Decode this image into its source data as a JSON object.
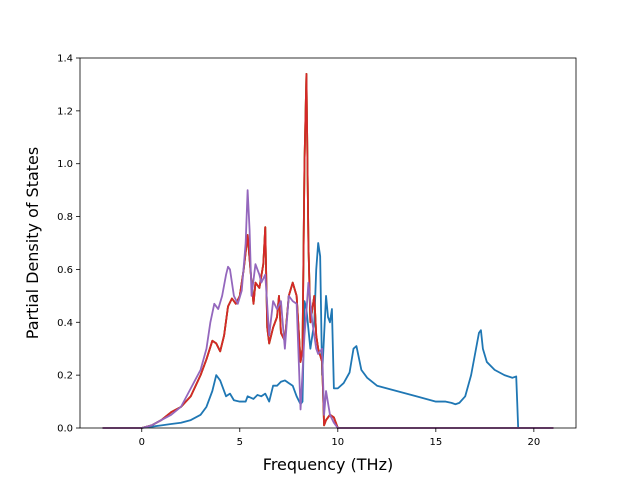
{
  "chart_data": {
    "type": "line",
    "title": "",
    "xlabel": "Frequency (THz)",
    "ylabel": "Partial Density of States",
    "xlim": [
      -3.15,
      22.15
    ],
    "ylim": [
      0,
      1.4
    ],
    "xticks": [
      0,
      5,
      10,
      15,
      20
    ],
    "yticks": [
      0.0,
      0.2,
      0.4,
      0.6,
      0.8,
      1.0,
      1.2,
      1.4
    ],
    "xtick_labels": [
      "0",
      "5",
      "10",
      "15",
      "20"
    ],
    "ytick_labels": [
      "0.0",
      "0.2",
      "0.4",
      "0.6",
      "0.8",
      "1.0",
      "1.2",
      "1.4"
    ],
    "grid": false,
    "legend": "none",
    "series": [
      {
        "color": "#1f77b4",
        "x": [
          -2.0,
          0.0,
          0.5,
          1.0,
          1.5,
          2.0,
          2.5,
          3.0,
          3.3,
          3.6,
          3.8,
          4.0,
          4.3,
          4.5,
          4.7,
          5.0,
          5.3,
          5.4,
          5.7,
          5.9,
          6.1,
          6.3,
          6.5,
          6.7,
          6.9,
          7.1,
          7.3,
          7.5,
          7.7,
          7.9,
          8.1,
          8.2,
          8.3,
          8.4,
          8.6,
          8.8,
          8.9,
          9.0,
          9.1,
          9.2,
          9.4,
          9.5,
          9.6,
          9.7,
          9.8,
          10.0,
          10.3,
          10.6,
          10.8,
          10.95,
          11.2,
          11.5,
          12.0,
          13.0,
          14.0,
          15.0,
          15.5,
          15.8,
          16.0,
          16.2,
          16.5,
          16.8,
          17.0,
          17.2,
          17.3,
          17.4,
          17.6,
          18.0,
          18.5,
          18.9,
          19.1,
          19.15,
          19.2,
          21.0
        ],
        "y": [
          0.0,
          0.0,
          0.005,
          0.01,
          0.015,
          0.02,
          0.03,
          0.05,
          0.08,
          0.14,
          0.2,
          0.18,
          0.12,
          0.13,
          0.105,
          0.1,
          0.1,
          0.12,
          0.11,
          0.125,
          0.12,
          0.13,
          0.1,
          0.16,
          0.16,
          0.175,
          0.18,
          0.17,
          0.16,
          0.12,
          0.09,
          0.1,
          0.48,
          0.45,
          0.3,
          0.4,
          0.6,
          0.7,
          0.65,
          0.2,
          0.5,
          0.42,
          0.4,
          0.45,
          0.15,
          0.15,
          0.17,
          0.21,
          0.3,
          0.31,
          0.22,
          0.19,
          0.16,
          0.14,
          0.12,
          0.1,
          0.1,
          0.095,
          0.09,
          0.095,
          0.12,
          0.2,
          0.28,
          0.36,
          0.37,
          0.3,
          0.25,
          0.22,
          0.2,
          0.19,
          0.195,
          0.1,
          0.0,
          0.0
        ]
      },
      {
        "color": "#ff7f0e",
        "x": [
          -2.0,
          0.0,
          0.5,
          1.0,
          1.5,
          2.0,
          2.5,
          3.0,
          3.3,
          3.6,
          3.8,
          4.0,
          4.2,
          4.4,
          4.6,
          4.8,
          5.0,
          5.2,
          5.4,
          5.6,
          5.7,
          5.8,
          6.0,
          6.2,
          6.3,
          6.4,
          6.5,
          6.7,
          6.9,
          7.0,
          7.1,
          7.3,
          7.5,
          7.7,
          7.9,
          8.1,
          8.2,
          8.3,
          8.4,
          8.5,
          8.6,
          8.8,
          8.9,
          9.0,
          9.2,
          9.3,
          9.4,
          9.6,
          9.8,
          10.0,
          21.0
        ],
        "y": [
          0.0,
          0.0,
          0.01,
          0.03,
          0.06,
          0.08,
          0.12,
          0.2,
          0.26,
          0.33,
          0.32,
          0.29,
          0.35,
          0.46,
          0.49,
          0.47,
          0.5,
          0.6,
          0.73,
          0.55,
          0.47,
          0.55,
          0.53,
          0.62,
          0.76,
          0.38,
          0.32,
          0.38,
          0.42,
          0.5,
          0.36,
          0.33,
          0.5,
          0.55,
          0.5,
          0.25,
          0.3,
          1.0,
          1.34,
          0.7,
          0.4,
          0.5,
          0.35,
          0.3,
          0.25,
          0.01,
          0.03,
          0.05,
          0.04,
          0.0,
          0.0
        ]
      },
      {
        "color": "#2ca02c",
        "x": [
          -2.0,
          0.0,
          0.5,
          1.0,
          1.5,
          2.0,
          2.5,
          3.0,
          3.3,
          3.6,
          3.8,
          4.0,
          4.2,
          4.4,
          4.6,
          4.8,
          5.0,
          5.2,
          5.4,
          5.6,
          5.7,
          5.8,
          6.0,
          6.2,
          6.3,
          6.4,
          6.5,
          6.7,
          6.9,
          7.0,
          7.1,
          7.3,
          7.5,
          7.7,
          7.9,
          8.1,
          8.2,
          8.3,
          8.4,
          8.5,
          8.6,
          8.8,
          8.9,
          9.0,
          9.2,
          9.3,
          9.4,
          9.6,
          9.8,
          10.0,
          21.0
        ],
        "y": [
          0.0,
          0.0,
          0.01,
          0.03,
          0.06,
          0.08,
          0.12,
          0.2,
          0.26,
          0.33,
          0.32,
          0.29,
          0.35,
          0.46,
          0.49,
          0.47,
          0.5,
          0.6,
          0.73,
          0.55,
          0.47,
          0.55,
          0.53,
          0.62,
          0.76,
          0.38,
          0.32,
          0.38,
          0.42,
          0.5,
          0.36,
          0.33,
          0.5,
          0.55,
          0.5,
          0.25,
          0.3,
          1.0,
          1.34,
          0.7,
          0.4,
          0.5,
          0.35,
          0.3,
          0.25,
          0.01,
          0.03,
          0.05,
          0.04,
          0.0,
          0.0
        ]
      },
      {
        "color": "#d62728",
        "x": [
          -2.0,
          0.0,
          0.5,
          1.0,
          1.5,
          2.0,
          2.5,
          3.0,
          3.3,
          3.6,
          3.8,
          4.0,
          4.2,
          4.4,
          4.6,
          4.8,
          5.0,
          5.2,
          5.4,
          5.6,
          5.7,
          5.8,
          6.0,
          6.2,
          6.3,
          6.4,
          6.5,
          6.7,
          6.9,
          7.0,
          7.1,
          7.3,
          7.5,
          7.7,
          7.9,
          8.1,
          8.2,
          8.3,
          8.4,
          8.5,
          8.6,
          8.8,
          8.9,
          9.0,
          9.2,
          9.3,
          9.4,
          9.6,
          9.8,
          10.0,
          21.0
        ],
        "y": [
          0.0,
          0.0,
          0.01,
          0.03,
          0.06,
          0.08,
          0.12,
          0.2,
          0.26,
          0.33,
          0.32,
          0.29,
          0.35,
          0.46,
          0.49,
          0.47,
          0.5,
          0.6,
          0.73,
          0.55,
          0.47,
          0.55,
          0.53,
          0.62,
          0.76,
          0.38,
          0.32,
          0.38,
          0.42,
          0.5,
          0.36,
          0.33,
          0.5,
          0.55,
          0.5,
          0.25,
          0.3,
          1.0,
          1.34,
          0.7,
          0.4,
          0.5,
          0.35,
          0.3,
          0.25,
          0.01,
          0.03,
          0.05,
          0.04,
          0.0,
          0.0
        ]
      },
      {
        "color": "#9467bd",
        "x": [
          -2.0,
          0.0,
          0.5,
          1.0,
          1.5,
          2.0,
          2.5,
          3.0,
          3.3,
          3.5,
          3.7,
          3.9,
          4.1,
          4.3,
          4.4,
          4.5,
          4.7,
          4.9,
          5.1,
          5.3,
          5.4,
          5.5,
          5.6,
          5.8,
          6.0,
          6.1,
          6.3,
          6.5,
          6.7,
          6.9,
          7.1,
          7.3,
          7.5,
          7.7,
          7.9,
          8.1,
          8.3,
          8.4,
          8.5,
          8.7,
          8.9,
          9.0,
          9.2,
          9.3,
          9.4,
          9.6,
          9.8,
          10.0,
          21.0
        ],
        "y": [
          0.0,
          0.0,
          0.01,
          0.03,
          0.05,
          0.08,
          0.15,
          0.22,
          0.3,
          0.4,
          0.47,
          0.45,
          0.5,
          0.58,
          0.61,
          0.6,
          0.5,
          0.47,
          0.52,
          0.7,
          0.9,
          0.75,
          0.5,
          0.62,
          0.58,
          0.55,
          0.58,
          0.35,
          0.48,
          0.45,
          0.48,
          0.3,
          0.5,
          0.48,
          0.47,
          0.07,
          0.35,
          0.44,
          0.55,
          0.4,
          0.3,
          0.28,
          0.3,
          0.05,
          0.14,
          0.05,
          0.02,
          0.0,
          0.0
        ]
      }
    ]
  }
}
